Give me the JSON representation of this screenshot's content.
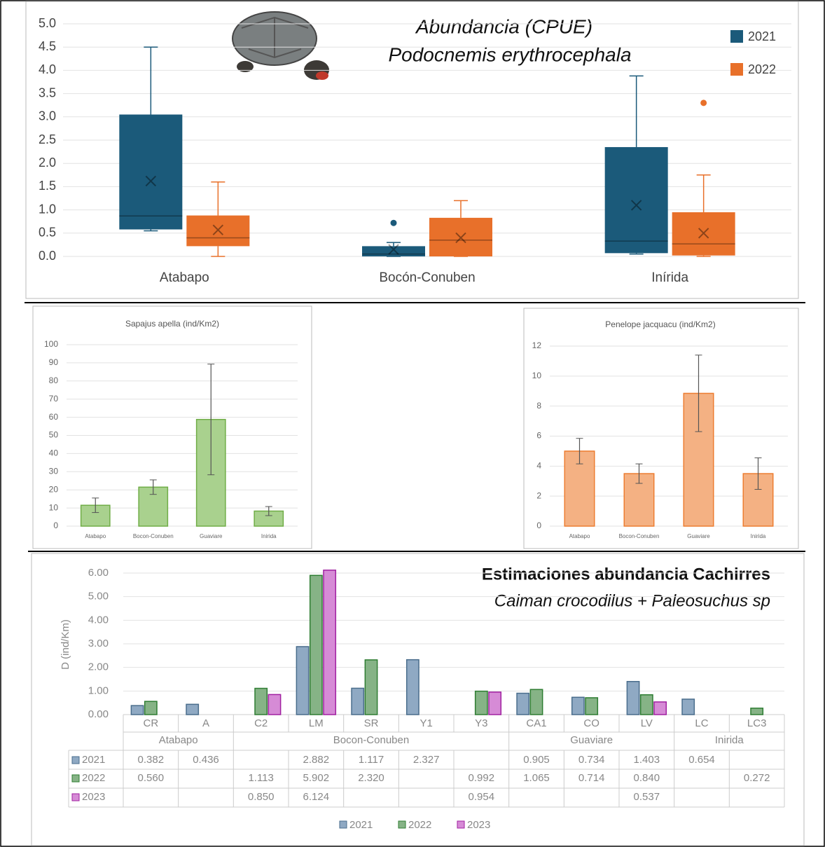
{
  "chart_data": [
    {
      "type": "box",
      "title": "Abundancia (CPUE)",
      "subtitle": "Podocnemis erythrocephala",
      "categories": [
        "Atabapo",
        "Bocón-Conuben",
        "Inírida"
      ],
      "ylim": [
        0,
        5
      ],
      "yticks": [
        {
          "value": 0,
          "label": "0.0"
        },
        0.5,
        {
          "value": 1,
          "label": "1.0"
        },
        1.5,
        {
          "value": 2,
          "label": "2.0"
        },
        2.5,
        {
          "value": 3,
          "label": "3.0"
        },
        3.5,
        {
          "value": 4,
          "label": "4.0"
        },
        4.5,
        {
          "value": 5,
          "label": "5.0"
        }
      ],
      "grid": true,
      "series": [
        {
          "name": "2021",
          "color": "#1b5a7a",
          "min": [
            0.55,
            0,
            0.05
          ],
          "q1": [
            0.58,
            0,
            0.07
          ],
          "median": [
            0.87,
            0.05,
            0.33
          ],
          "q3": [
            3.05,
            0.22,
            2.35
          ],
          "max": [
            4.5,
            0.3,
            3.88
          ],
          "mean": [
            1.62,
            0.15,
            1.1
          ],
          "outliers": [
            [],
            [
              0.72
            ],
            []
          ]
        },
        {
          "name": "2022",
          "color": "#e8702a",
          "min": [
            0,
            0,
            0
          ],
          "q1": [
            0.22,
            0,
            0.02
          ],
          "median": [
            0.4,
            0.35,
            0.27
          ],
          "q3": [
            0.88,
            0.83,
            0.95
          ],
          "max": [
            1.6,
            1.2,
            1.75
          ],
          "mean": [
            0.57,
            0.4,
            0.5
          ],
          "outliers": [
            [],
            [],
            [
              3.3
            ]
          ]
        }
      ]
    },
    {
      "type": "errorbar",
      "title": "Sapajus apella (ind/Km2)",
      "categories": [
        "Atabapo",
        "Bocon-Conuben",
        "Guaviare",
        "Inirida"
      ],
      "values": [
        11.5,
        21.5,
        58.8,
        8.3
      ],
      "errors": [
        4,
        4,
        30.5,
        2.5
      ],
      "color": "#a9d18e",
      "edge_color": "#70ad47",
      "ylim": [
        0,
        100
      ],
      "yticks": [
        0,
        10,
        20,
        30,
        40,
        50,
        60,
        70,
        80,
        90,
        100
      ],
      "grid": true
    },
    {
      "type": "errorbar",
      "title": "Penelope jacquacu (ind/Km2)",
      "categories": [
        "Atabapo",
        "Bocon-Conuben",
        "Guaviare",
        "Inirida"
      ],
      "values": [
        5.0,
        3.5,
        8.85,
        3.5
      ],
      "errors": [
        0.85,
        0.65,
        2.55,
        1.05
      ],
      "color": "#f4b183",
      "edge_color": "#ed7d31",
      "ylim": [
        0,
        12
      ],
      "yticks": [
        0,
        2,
        4,
        6,
        8,
        10,
        12
      ],
      "grid": true
    },
    {
      "type": "grouped_bar_table",
      "title": "Estimaciones abundancia Cachirres",
      "subtitle": "Caiman crocodilus + Paleosuchus sp",
      "ylabel": "D (ind/Km)",
      "categories": [
        "CR",
        "A",
        "C2",
        "LM",
        "SR",
        "Y1",
        "Y3",
        "CA1",
        "CO",
        "LV",
        "LC",
        "LC3"
      ],
      "groups": [
        "Atabapo",
        "Bocon-Conuben",
        "Guaviare",
        "Inirida"
      ],
      "group_sizes": [
        2,
        5,
        3,
        2
      ],
      "ylim": [
        0,
        6.2
      ],
      "yticks": [
        {
          "value": 0,
          "label": "0.00"
        },
        {
          "value": 1,
          "label": "1.00"
        },
        {
          "value": 2,
          "label": "2.00"
        },
        {
          "value": 3,
          "label": "3.00"
        },
        {
          "value": 4,
          "label": "4.00"
        },
        {
          "value": 5,
          "label": "5.00"
        },
        {
          "value": 6,
          "label": "6.00"
        }
      ],
      "grid": true,
      "series": [
        {
          "name": "2021",
          "color": "#8fa9c3",
          "edge_color": "#4a6d8c",
          "values": [
            0.382,
            0.436,
            null,
            2.882,
            1.117,
            2.327,
            null,
            0.905,
            0.734,
            1.403,
            0.654,
            null
          ],
          "value_labels": [
            "0.382",
            "0.436",
            null,
            "2.882",
            "1.117",
            "2.327",
            null,
            "0.905",
            "0.734",
            "1.403",
            "0.654",
            null
          ]
        },
        {
          "name": "2022",
          "color": "#86b386",
          "edge_color": "#2e7d32",
          "values": [
            0.56,
            null,
            1.113,
            5.902,
            2.32,
            null,
            0.992,
            1.065,
            0.714,
            0.84,
            null,
            0.272
          ],
          "value_labels": [
            "0.560",
            null,
            "1.113",
            "5.902",
            "2.320",
            null,
            "0.992",
            "1.065",
            "0.714",
            "0.840",
            null,
            "0.272"
          ]
        },
        {
          "name": "2023",
          "color": "#d68bd6",
          "edge_color": "#a020a0",
          "values": [
            null,
            null,
            0.85,
            6.124,
            null,
            null,
            0.954,
            null,
            null,
            0.537,
            null,
            null
          ],
          "value_labels": [
            null,
            null,
            "0.850",
            "6.124",
            null,
            null,
            "0.954",
            null,
            null,
            "0.537",
            null,
            null
          ]
        }
      ]
    }
  ]
}
